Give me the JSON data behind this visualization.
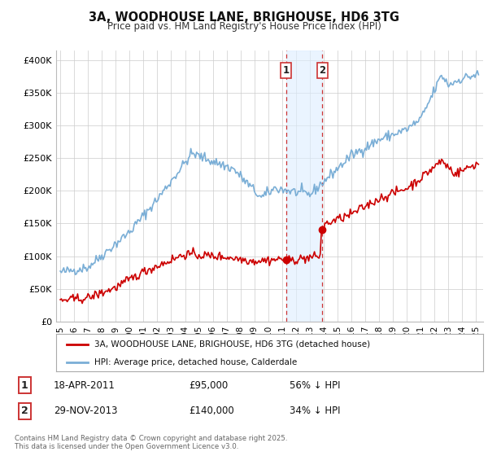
{
  "title": "3A, WOODHOUSE LANE, BRIGHOUSE, HD6 3TG",
  "subtitle": "Price paid vs. HM Land Registry's House Price Index (HPI)",
  "yticks": [
    0,
    50000,
    100000,
    150000,
    200000,
    250000,
    300000,
    350000,
    400000
  ],
  "ytick_labels": [
    "£0",
    "£50K",
    "£100K",
    "£150K",
    "£200K",
    "£250K",
    "£300K",
    "£350K",
    "£400K"
  ],
  "ylim": [
    0,
    415000
  ],
  "xlim_start": 1994.7,
  "xlim_end": 2025.5,
  "xticks": [
    1995,
    1996,
    1997,
    1998,
    1999,
    2000,
    2001,
    2002,
    2003,
    2004,
    2005,
    2006,
    2007,
    2008,
    2009,
    2010,
    2011,
    2012,
    2013,
    2014,
    2015,
    2016,
    2017,
    2018,
    2019,
    2020,
    2021,
    2022,
    2023,
    2024,
    2025
  ],
  "sale1_date": 2011.29,
  "sale1_price": 95000,
  "sale2_date": 2013.91,
  "sale2_price": 140000,
  "vline_color": "#cc3333",
  "vshade_color": "#ddeeff",
  "marker_color": "#cc0000",
  "hpi_line_color": "#7aaed6",
  "price_line_color": "#cc0000",
  "legend_label1": "3A, WOODHOUSE LANE, BRIGHOUSE, HD6 3TG (detached house)",
  "legend_label2": "HPI: Average price, detached house, Calderdale",
  "footnote": "Contains HM Land Registry data © Crown copyright and database right 2025.\nThis data is licensed under the Open Government Licence v3.0.",
  "bg_color": "#ffffff",
  "grid_color": "#cccccc"
}
